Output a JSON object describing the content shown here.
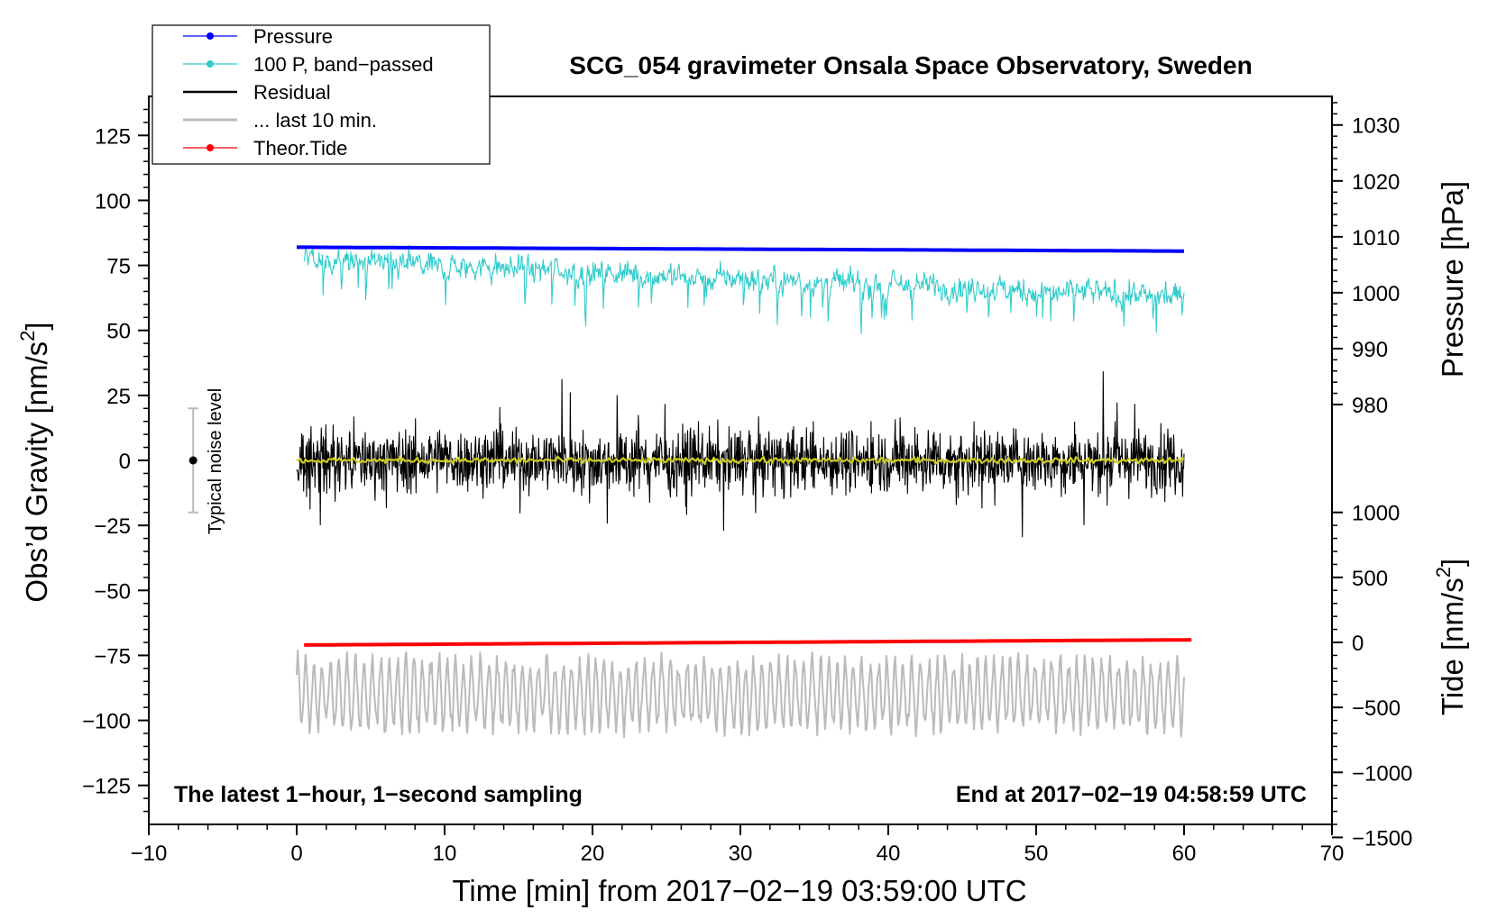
{
  "chart_data": {
    "type": "line",
    "title": "SCG_054 gravimeter Onsala Space Observatory, Sweden",
    "xlabel": "Time [min] from 2017−02−19 03:59:00 UTC",
    "ylabel": "Obs’d Gravity [nm/s²]",
    "xlim": [
      -10,
      70
    ],
    "ylim": [
      -140,
      140
    ],
    "x_ticks": [
      -10,
      0,
      10,
      20,
      30,
      40,
      50,
      60,
      70
    ],
    "x_tick_labels": [
      "−10",
      "0",
      "10",
      "20",
      "30",
      "40",
      "50",
      "60",
      "70"
    ],
    "y_ticks": [
      -125,
      -100,
      -75,
      -50,
      -25,
      0,
      25,
      50,
      75,
      100,
      125
    ],
    "y_tick_labels": [
      "−125",
      "−100",
      "−75",
      "−50",
      "−25",
      "0",
      "25",
      "50",
      "75",
      "100",
      "125"
    ],
    "right_axes": [
      {
        "label_main": "Pressure [hPa]",
        "ticks": [
          980,
          990,
          1000,
          1010,
          1020,
          1030
        ],
        "tick_labels": [
          "980",
          "990",
          "1000",
          "1010",
          "1020",
          "1030"
        ],
        "gravity_equivalent": {
          "value_at_1000": 64.5,
          "scale_per_unit": 2.15
        }
      },
      {
        "label_main": "Tide [nm/s",
        "label_sup": "2",
        "label_end": "]",
        "ticks": [
          -1500,
          -1000,
          -500,
          0,
          500,
          1000
        ],
        "tick_labels": [
          "−1500",
          "−1000",
          "−500",
          "0",
          "500",
          "1000"
        ],
        "gravity_equivalent": {
          "value_at_0": -70,
          "scale_per_unit": 0.05
        }
      }
    ],
    "ylabel_main": "Obs’d Gravity [nm/s",
    "ylabel_sup": "2",
    "ylabel_end": "]",
    "annotations": {
      "left_bottom": "The latest 1−hour, 1−second sampling",
      "right_bottom": "End at 2017−02−19 04:58:59 UTC",
      "noise_label": "Typical noise level",
      "noise_center": 0,
      "noise_range": [
        -20,
        20
      ],
      "noise_x": -7
    },
    "legend": {
      "position": "top-left",
      "entries": [
        {
          "label": "Pressure",
          "color": "#0000ff",
          "marker": true
        },
        {
          "label": "100 P, band−passed",
          "color": "#33cccc",
          "marker": true
        },
        {
          "label": "Residual",
          "color": "#000000",
          "marker": false
        },
        {
          "label": "... last 10 min.",
          "color": "#bbbbbb",
          "marker": false
        },
        {
          "label": "Theor.Tide",
          "color": "#ff0000",
          "marker": true
        }
      ]
    },
    "series": [
      {
        "name": "Pressure",
        "color": "#0000ff",
        "kind": "trend",
        "x_range": [
          0,
          60
        ],
        "y_start": 82,
        "y_end": 80.5
      },
      {
        "name": "100 P, band−passed",
        "color": "#33cccc",
        "kind": "noise",
        "x_range": [
          0.5,
          60
        ],
        "y_start": 77,
        "y_end": 63,
        "amplitude": 9
      },
      {
        "name": "Residual",
        "color": "#000000",
        "kind": "noise",
        "x_range": [
          0,
          60
        ],
        "y_start": 0,
        "y_end": 0,
        "amplitude": 13
      },
      {
        "name": "Residual (smoothed)",
        "color": "#cccc22",
        "kind": "noise",
        "x_range": [
          0,
          60
        ],
        "y_start": 0,
        "y_end": 0,
        "amplitude": 1.2
      },
      {
        "name": "... last 10 min.",
        "color": "#bbbbbb",
        "kind": "oscillation",
        "x_range": [
          0,
          60
        ],
        "y_center": -90,
        "amplitude": 13
      },
      {
        "name": "Theor.Tide",
        "color": "#ff0000",
        "kind": "trend",
        "x_range": [
          0.5,
          60.5
        ],
        "y_start": -71,
        "y_end": -69
      }
    ]
  }
}
